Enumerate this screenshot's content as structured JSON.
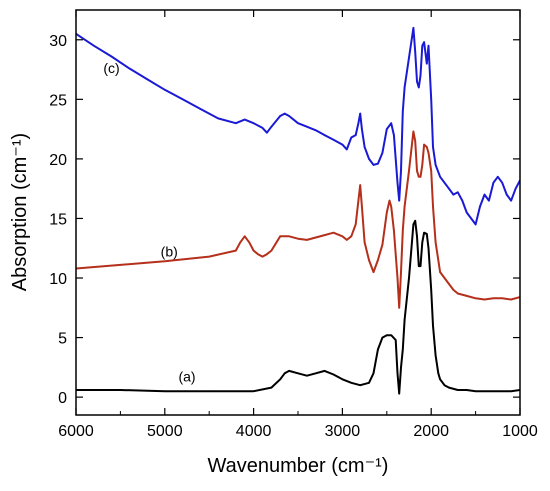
{
  "chart_data": {
    "type": "line",
    "title": "",
    "xlabel": "Wavenumber (cm⁻¹)",
    "ylabel": "Absorption (cm⁻¹)",
    "xlim": [
      6000,
      1000
    ],
    "ylim": [
      -1.5,
      32.5
    ],
    "x_reversed": true,
    "grid": false,
    "legend": "none",
    "x_ticks": [
      6000,
      5000,
      4000,
      3000,
      2000,
      1000
    ],
    "y_ticks": [
      0,
      5,
      10,
      15,
      20,
      25,
      30
    ],
    "series": [
      {
        "name": "(a)",
        "color": "#000000",
        "x": [
          6000,
          5500,
          5000,
          4500,
          4000,
          3800,
          3700,
          3650,
          3600,
          3500,
          3400,
          3300,
          3200,
          3100,
          3000,
          2900,
          2800,
          2700,
          2650,
          2600,
          2550,
          2500,
          2450,
          2400,
          2380,
          2360,
          2340,
          2320,
          2300,
          2250,
          2200,
          2180,
          2160,
          2140,
          2120,
          2100,
          2080,
          2050,
          2030,
          2000,
          1980,
          1950,
          1920,
          1900,
          1850,
          1800,
          1700,
          1600,
          1500,
          1400,
          1300,
          1200,
          1100,
          1000
        ],
        "y": [
          0.6,
          0.6,
          0.5,
          0.5,
          0.5,
          0.8,
          1.5,
          2.0,
          2.2,
          2.0,
          1.8,
          2.0,
          2.2,
          1.9,
          1.5,
          1.2,
          1.0,
          1.2,
          2.0,
          4.0,
          5.0,
          5.2,
          5.2,
          4.8,
          2.0,
          0.3,
          2.5,
          4.0,
          6.5,
          10.0,
          14.5,
          14.8,
          13.5,
          11.0,
          11.0,
          13.0,
          13.8,
          13.7,
          12.5,
          9.0,
          6.0,
          3.5,
          2.0,
          1.5,
          1.0,
          0.8,
          0.6,
          0.6,
          0.5,
          0.5,
          0.5,
          0.5,
          0.5,
          0.6
        ]
      },
      {
        "name": "(b)",
        "color": "#b5301b",
        "x": [
          6000,
          5500,
          5000,
          4500,
          4200,
          4150,
          4100,
          4050,
          4000,
          3950,
          3900,
          3850,
          3800,
          3700,
          3600,
          3500,
          3400,
          3300,
          3200,
          3100,
          3000,
          2950,
          2900,
          2850,
          2820,
          2800,
          2780,
          2750,
          2700,
          2650,
          2600,
          2550,
          2500,
          2470,
          2450,
          2420,
          2400,
          2380,
          2360,
          2340,
          2320,
          2300,
          2250,
          2200,
          2180,
          2160,
          2140,
          2120,
          2100,
          2080,
          2050,
          2030,
          2000,
          1980,
          1950,
          1920,
          1900,
          1850,
          1800,
          1750,
          1700,
          1600,
          1500,
          1400,
          1300,
          1200,
          1100,
          1000
        ],
        "y": [
          10.8,
          11.1,
          11.4,
          11.8,
          12.3,
          13.0,
          13.5,
          13.0,
          12.3,
          12.0,
          11.8,
          12.0,
          12.3,
          13.5,
          13.5,
          13.3,
          13.2,
          13.4,
          13.6,
          13.8,
          13.5,
          13.2,
          13.5,
          14.5,
          16.5,
          17.8,
          16.0,
          13.0,
          11.5,
          10.5,
          11.5,
          12.8,
          15.5,
          16.5,
          16.0,
          14.0,
          12.0,
          10.0,
          7.5,
          10.5,
          14.0,
          16.0,
          19.0,
          22.3,
          21.5,
          19.0,
          18.5,
          18.5,
          19.5,
          21.2,
          21.0,
          20.5,
          19.0,
          16.0,
          13.0,
          11.5,
          10.5,
          10.0,
          9.5,
          9.0,
          8.7,
          8.5,
          8.3,
          8.2,
          8.3,
          8.3,
          8.2,
          8.4
        ]
      },
      {
        "name": "(c)",
        "color": "#1a1ad6",
        "x": [
          6000,
          5800,
          5600,
          5400,
          5200,
          5000,
          4800,
          4600,
          4400,
          4200,
          4100,
          4000,
          3900,
          3850,
          3800,
          3700,
          3650,
          3600,
          3500,
          3400,
          3300,
          3200,
          3100,
          3000,
          2950,
          2900,
          2850,
          2820,
          2800,
          2780,
          2750,
          2700,
          2650,
          2600,
          2550,
          2500,
          2450,
          2420,
          2400,
          2380,
          2360,
          2340,
          2320,
          2300,
          2250,
          2200,
          2180,
          2160,
          2140,
          2120,
          2100,
          2080,
          2050,
          2030,
          2000,
          1980,
          1950,
          1900,
          1850,
          1800,
          1750,
          1700,
          1650,
          1600,
          1550,
          1500,
          1450,
          1400,
          1350,
          1300,
          1250,
          1200,
          1150,
          1100,
          1050,
          1000
        ],
        "y": [
          30.5,
          29.5,
          28.6,
          27.6,
          26.7,
          25.8,
          25.0,
          24.2,
          23.4,
          23.0,
          23.3,
          23.0,
          22.6,
          22.2,
          22.7,
          23.6,
          23.8,
          23.6,
          23.0,
          22.7,
          22.4,
          22.0,
          21.6,
          21.2,
          20.8,
          21.8,
          22.0,
          23.0,
          23.8,
          22.5,
          21.0,
          20.0,
          19.5,
          19.6,
          20.5,
          22.5,
          23.0,
          22.0,
          20.0,
          18.0,
          16.5,
          19.0,
          24.0,
          26.0,
          28.5,
          31.0,
          29.0,
          26.5,
          26.0,
          27.0,
          29.5,
          29.8,
          28.0,
          29.5,
          25.0,
          21.0,
          19.5,
          18.5,
          18.0,
          17.5,
          17.0,
          17.2,
          16.5,
          15.5,
          15.0,
          14.5,
          16.0,
          17.0,
          16.5,
          18.0,
          18.5,
          18.0,
          17.0,
          16.5,
          17.5,
          18.2
        ]
      }
    ],
    "annotations": [
      {
        "text": "(a)",
        "x": 4750,
        "y": 1.3
      },
      {
        "text": "(b)",
        "x": 4950,
        "y": 11.8
      },
      {
        "text": "(c)",
        "x": 5600,
        "y": 27.2
      }
    ]
  }
}
